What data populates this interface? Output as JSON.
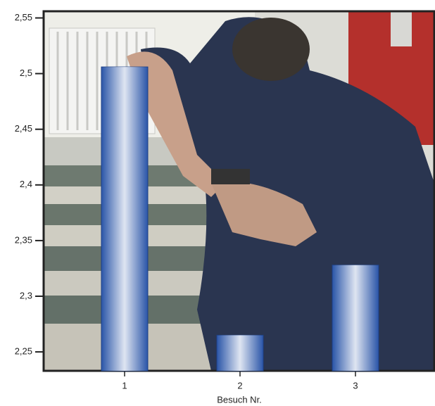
{
  "chart_data": {
    "type": "bar",
    "x_label": "Besuch Nr.",
    "categories": [
      "1",
      "2",
      "3"
    ],
    "values": [
      2.506,
      2.265,
      2.328
    ],
    "color": "#2a55a8",
    "ylim": [
      2.233,
      2.556
    ],
    "yticks": [
      {
        "value": 2.25,
        "label": "2,25"
      },
      {
        "value": 2.3,
        "label": "2,3"
      },
      {
        "value": 2.35,
        "label": "2,35"
      },
      {
        "value": 2.4,
        "label": "2,4"
      },
      {
        "value": 2.45,
        "label": "2,45"
      },
      {
        "value": 2.5,
        "label": "2,5"
      },
      {
        "value": 2.55,
        "label": "2,55"
      }
    ]
  }
}
